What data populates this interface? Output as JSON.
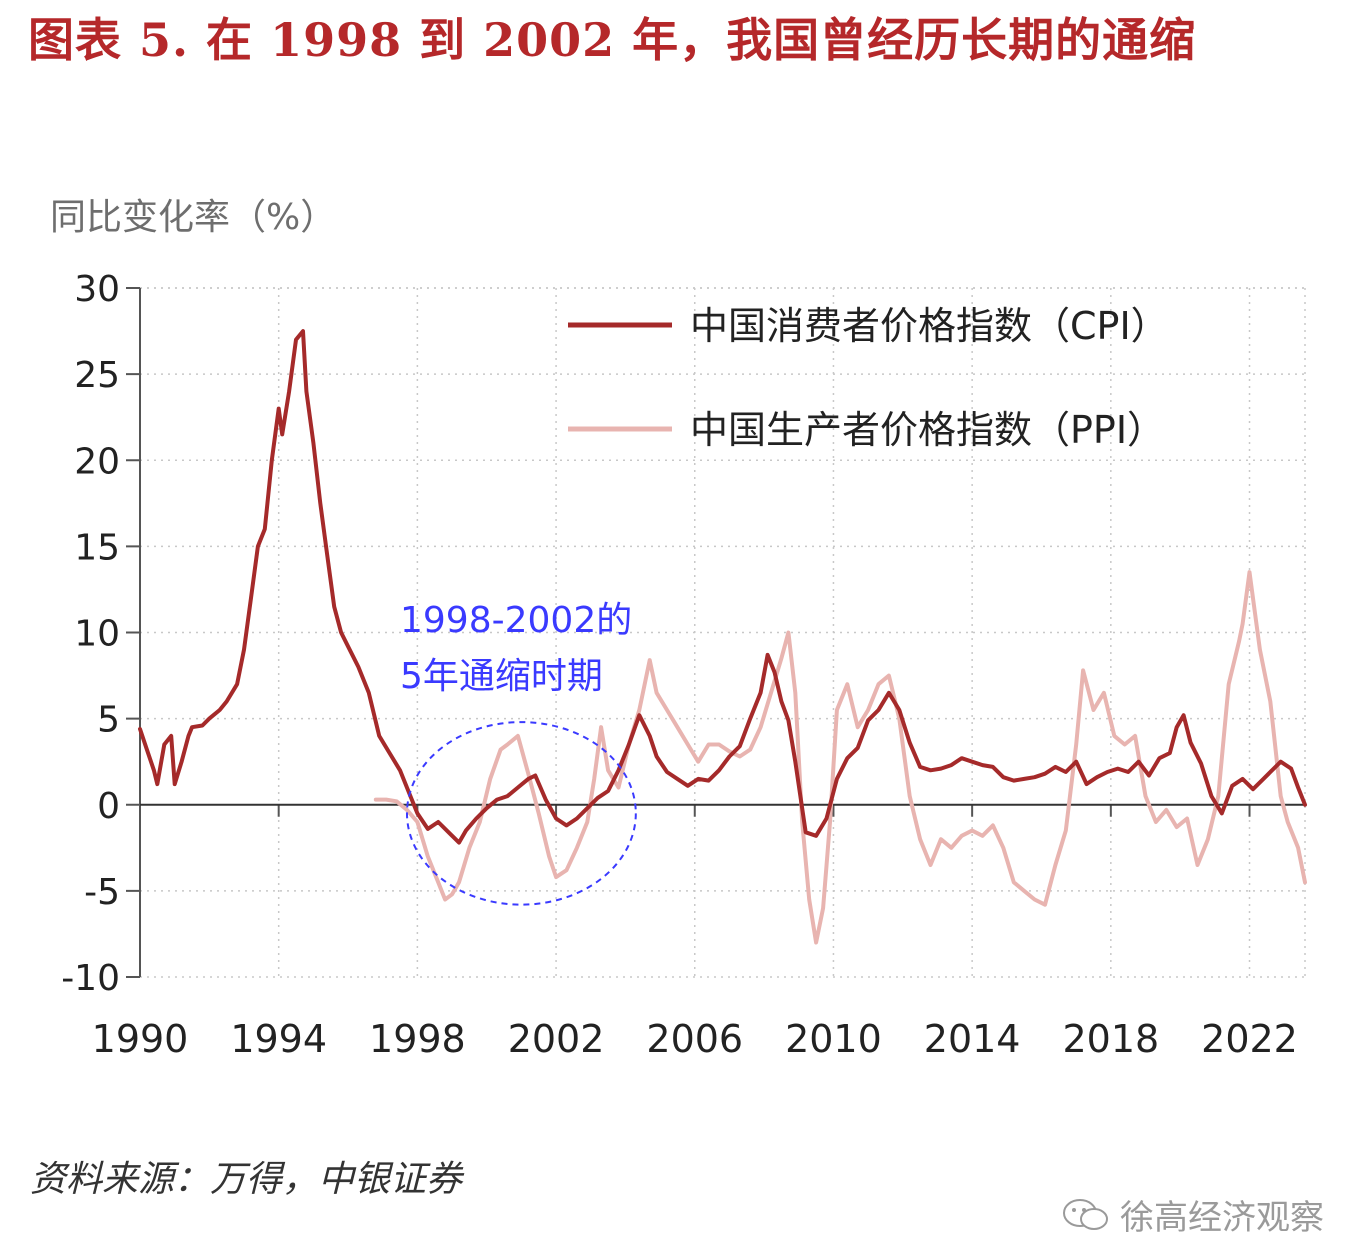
{
  "title": "图表 5. 在 1998 到 2002 年，我国曾经历长期的通缩",
  "source": "资料来源：万得，中银证券",
  "watermark": "徐高经济观察",
  "colors": {
    "title": "#b5282a",
    "cpi": "#a52a2a",
    "ppi": "#e8b4b0",
    "annotation": "#3a3aff",
    "grid": "#c8c8c8"
  },
  "chart_data": {
    "type": "line",
    "ylabel": "同比变化率（%）",
    "ylim": [
      -10,
      30
    ],
    "yticks": [
      30,
      25,
      20,
      15,
      10,
      5,
      0,
      -5,
      -10
    ],
    "xlim": [
      1990,
      2023.6
    ],
    "xticks": [
      1990,
      1994,
      1998,
      2002,
      2006,
      2010,
      2014,
      2018,
      2022
    ],
    "legend_position": "top-right",
    "annotation": {
      "lines": [
        "1998-2002的",
        "5年通缩时期"
      ],
      "center": [
        2001.0,
        -0.5
      ],
      "radius_years": 3.3,
      "radius_value": 5.3
    },
    "series": [
      {
        "name": "中国消费者价格指数（CPI）",
        "color": "#a52a2a",
        "x": [
          1990.0,
          1990.2,
          1990.4,
          1990.5,
          1990.7,
          1990.9,
          1991.0,
          1991.2,
          1991.4,
          1991.5,
          1991.8,
          1992.0,
          1992.3,
          1992.5,
          1992.8,
          1993.0,
          1993.2,
          1993.4,
          1993.6,
          1993.8,
          1994.0,
          1994.1,
          1994.3,
          1994.5,
          1994.7,
          1994.8,
          1995.0,
          1995.2,
          1995.4,
          1995.6,
          1995.8,
          1996.0,
          1996.3,
          1996.6,
          1996.9,
          1997.2,
          1997.5,
          1997.8,
          1998.0,
          1998.3,
          1998.6,
          1998.9,
          1999.2,
          1999.4,
          1999.7,
          2000.0,
          2000.3,
          2000.6,
          2000.9,
          2001.2,
          2001.4,
          2001.7,
          2002.0,
          2002.3,
          2002.6,
          2002.9,
          2003.2,
          2003.5,
          2003.8,
          2004.1,
          2004.4,
          2004.7,
          2004.9,
          2005.2,
          2005.5,
          2005.8,
          2006.1,
          2006.4,
          2006.7,
          2007.0,
          2007.3,
          2007.6,
          2007.9,
          2008.1,
          2008.3,
          2008.5,
          2008.7,
          2008.9,
          2009.2,
          2009.5,
          2009.8,
          2010.1,
          2010.4,
          2010.7,
          2011.0,
          2011.3,
          2011.6,
          2011.9,
          2012.2,
          2012.5,
          2012.8,
          2013.1,
          2013.4,
          2013.7,
          2014.0,
          2014.3,
          2014.6,
          2014.9,
          2015.2,
          2015.5,
          2015.8,
          2016.1,
          2016.4,
          2016.7,
          2017.0,
          2017.3,
          2017.6,
          2017.9,
          2018.2,
          2018.5,
          2018.8,
          2019.1,
          2019.4,
          2019.7,
          2019.9,
          2020.1,
          2020.3,
          2020.6,
          2020.9,
          2021.2,
          2021.5,
          2021.8,
          2022.1,
          2022.4,
          2022.7,
          2022.9,
          2023.2,
          2023.4,
          2023.6
        ],
        "values": [
          4.4,
          3.2,
          2.0,
          1.2,
          3.5,
          4.0,
          1.2,
          2.5,
          4.0,
          4.5,
          4.6,
          5.0,
          5.5,
          6.0,
          7.0,
          9.0,
          12.0,
          15.0,
          16.0,
          20.0,
          23.0,
          21.5,
          24.0,
          27.0,
          27.5,
          24.0,
          21.0,
          17.5,
          14.5,
          11.5,
          10.0,
          9.2,
          8.0,
          6.5,
          4.0,
          3.0,
          2.0,
          0.5,
          -0.5,
          -1.4,
          -1.0,
          -1.6,
          -2.2,
          -1.5,
          -0.8,
          -0.2,
          0.3,
          0.5,
          1.0,
          1.5,
          1.7,
          0.3,
          -0.8,
          -1.2,
          -0.8,
          -0.2,
          0.4,
          0.8,
          2.0,
          3.5,
          5.2,
          4.0,
          2.8,
          1.9,
          1.5,
          1.1,
          1.5,
          1.4,
          2.0,
          2.8,
          3.4,
          5.0,
          6.5,
          8.7,
          7.7,
          6.0,
          4.9,
          2.5,
          -1.6,
          -1.8,
          -0.8,
          1.5,
          2.7,
          3.3,
          4.9,
          5.5,
          6.5,
          5.5,
          3.6,
          2.2,
          2.0,
          2.1,
          2.3,
          2.7,
          2.5,
          2.3,
          2.2,
          1.6,
          1.4,
          1.5,
          1.6,
          1.8,
          2.2,
          1.9,
          2.5,
          1.2,
          1.6,
          1.9,
          2.1,
          1.9,
          2.5,
          1.7,
          2.7,
          3.0,
          4.5,
          5.2,
          3.6,
          2.4,
          0.5,
          -0.5,
          1.1,
          1.5,
          0.9,
          1.5,
          2.1,
          2.5,
          2.1,
          1.0,
          0.0
        ]
      },
      {
        "name": "中国生产者价格指数（PPI）",
        "color": "#e8b4b0",
        "x": [
          1996.8,
          1997.1,
          1997.4,
          1997.7,
          1998.0,
          1998.3,
          1998.6,
          1998.8,
          1999.0,
          1999.2,
          1999.5,
          1999.8,
          2000.1,
          2000.4,
          2000.6,
          2000.9,
          2001.2,
          2001.5,
          2001.8,
          2002.0,
          2002.3,
          2002.6,
          2002.9,
          2003.1,
          2003.3,
          2003.5,
          2003.8,
          2004.1,
          2004.4,
          2004.7,
          2004.9,
          2005.2,
          2005.5,
          2005.8,
          2006.1,
          2006.4,
          2006.7,
          2007.0,
          2007.3,
          2007.6,
          2007.9,
          2008.2,
          2008.5,
          2008.7,
          2008.9,
          2009.1,
          2009.3,
          2009.5,
          2009.7,
          2009.9,
          2010.1,
          2010.4,
          2010.7,
          2011.0,
          2011.3,
          2011.6,
          2011.9,
          2012.2,
          2012.5,
          2012.8,
          2013.1,
          2013.4,
          2013.7,
          2014.0,
          2014.3,
          2014.6,
          2014.9,
          2015.2,
          2015.5,
          2015.8,
          2016.1,
          2016.4,
          2016.7,
          2017.0,
          2017.2,
          2017.5,
          2017.8,
          2018.1,
          2018.4,
          2018.7,
          2019.0,
          2019.3,
          2019.6,
          2019.9,
          2020.2,
          2020.5,
          2020.8,
          2021.1,
          2021.4,
          2021.7,
          2021.8,
          2022.0,
          2022.3,
          2022.6,
          2022.9,
          2023.1,
          2023.4,
          2023.6
        ],
        "values": [
          0.3,
          0.3,
          0.2,
          -0.3,
          -1.0,
          -3.0,
          -4.5,
          -5.5,
          -5.2,
          -4.5,
          -2.5,
          -1.0,
          1.5,
          3.2,
          3.5,
          4.0,
          1.8,
          -0.5,
          -3.0,
          -4.2,
          -3.8,
          -2.5,
          -1.0,
          1.5,
          4.5,
          2.0,
          1.0,
          3.5,
          5.5,
          8.4,
          6.5,
          5.5,
          4.5,
          3.5,
          2.5,
          3.5,
          3.5,
          3.1,
          2.8,
          3.2,
          4.5,
          6.5,
          8.5,
          10.0,
          6.5,
          -1.0,
          -5.5,
          -8.0,
          -6.0,
          -1.0,
          5.5,
          7.0,
          4.5,
          5.5,
          7.0,
          7.5,
          5.0,
          0.5,
          -2.0,
          -3.5,
          -2.0,
          -2.5,
          -1.8,
          -1.5,
          -1.8,
          -1.2,
          -2.5,
          -4.5,
          -5.0,
          -5.5,
          -5.8,
          -3.5,
          -1.5,
          3.5,
          7.8,
          5.5,
          6.5,
          4.0,
          3.5,
          4.0,
          0.5,
          -1.0,
          -0.3,
          -1.3,
          -0.8,
          -3.5,
          -2.0,
          0.5,
          7.0,
          9.5,
          10.5,
          13.5,
          9.0,
          6.0,
          0.5,
          -1.0,
          -2.5,
          -4.5
        ]
      }
    ]
  }
}
